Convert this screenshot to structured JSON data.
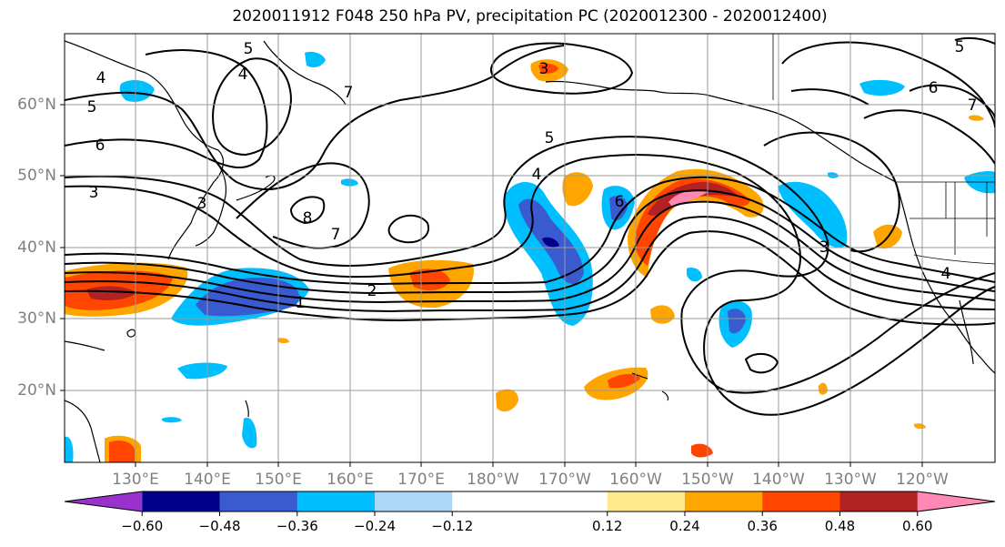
{
  "title": "2020011912 F048 250 hPa PV, precipitation PC (2020012300 - 2020012400)",
  "lat_labels": [
    "60°N",
    "50°N",
    "40°N",
    "30°N",
    "20°N"
  ],
  "lon_labels": [
    "130°E",
    "140°E",
    "150°E",
    "160°E",
    "170°E",
    "180°W",
    "170°W",
    "160°W",
    "150°W",
    "140°W",
    "130°W",
    "120°W"
  ],
  "contour_labels": [
    "4",
    "5",
    "6",
    "3",
    "4",
    "5",
    "7",
    "8",
    "7",
    "3",
    "5",
    "4",
    "2",
    "1",
    "6",
    "5",
    "6",
    "7",
    "3",
    "4",
    "3"
  ],
  "colorbar": {
    "colors": [
      "#9932cc",
      "#00008b",
      "#3a5bd0",
      "#00bfff",
      "#add8f7",
      "#ffffff",
      "#ffffff",
      "#ffe98a",
      "#ffa500",
      "#ff4500",
      "#b22222",
      "#ff88b4"
    ],
    "ticks": [
      "−0.60",
      "−0.48",
      "−0.36",
      "−0.24",
      "−0.12",
      "0.12",
      "0.24",
      "0.36",
      "0.48",
      "0.60"
    ]
  }
}
